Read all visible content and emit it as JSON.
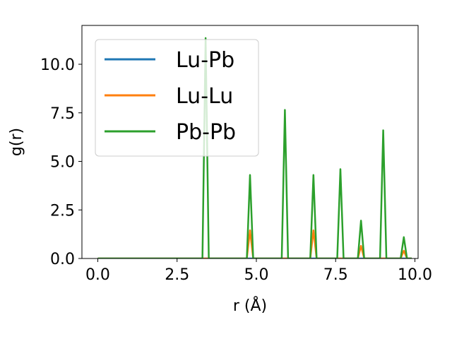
{
  "chart_data": {
    "type": "line",
    "xlabel": "r (Å)",
    "ylabel": "g(r)",
    "xlim": [
      -0.5,
      10.1
    ],
    "ylim": [
      0,
      12.0
    ],
    "xticks": [
      0.0,
      2.5,
      5.0,
      7.5,
      10.0
    ],
    "xtick_labels": [
      "0.0",
      "2.5",
      "5.0",
      "7.5",
      "10.0"
    ],
    "yticks": [
      0.0,
      2.5,
      5.0,
      7.5,
      10.0
    ],
    "ytick_labels": [
      "0.0",
      "2.5",
      "5.0",
      "7.5",
      "10.0"
    ],
    "grid": false,
    "legend_position": "top-left",
    "series": [
      {
        "name": "Lu-Pb",
        "color": "#1f77b4",
        "x": [
          0.0,
          9.9
        ],
        "y": [
          0.0,
          0.0
        ]
      },
      {
        "name": "Lu-Lu",
        "color": "#ff7f0e",
        "x": [
          0.0,
          4.7,
          4.8,
          4.9,
          6.7,
          6.8,
          6.9,
          8.2,
          8.3,
          8.4,
          9.55,
          9.65,
          9.75,
          9.9
        ],
        "y": [
          0.0,
          0.0,
          1.45,
          0.0,
          0.0,
          1.45,
          0.0,
          0.0,
          0.65,
          0.0,
          0.0,
          0.4,
          0.0,
          0.0
        ]
      },
      {
        "name": "Pb-Pb",
        "color": "#2ca02c",
        "x": [
          0.0,
          3.3,
          3.4,
          3.5,
          4.7,
          4.8,
          4.9,
          5.8,
          5.9,
          6.0,
          6.7,
          6.8,
          6.9,
          7.55,
          7.65,
          7.75,
          8.2,
          8.3,
          8.4,
          8.9,
          9.0,
          9.1,
          9.55,
          9.65,
          9.75,
          9.9
        ],
        "y": [
          0.0,
          0.0,
          11.35,
          0.0,
          0.0,
          4.3,
          0.0,
          0.0,
          7.65,
          0.0,
          0.0,
          4.3,
          0.0,
          0.0,
          4.6,
          0.0,
          0.0,
          1.95,
          0.0,
          0.0,
          6.6,
          0.0,
          0.0,
          1.1,
          0.0,
          0.0
        ]
      }
    ]
  }
}
